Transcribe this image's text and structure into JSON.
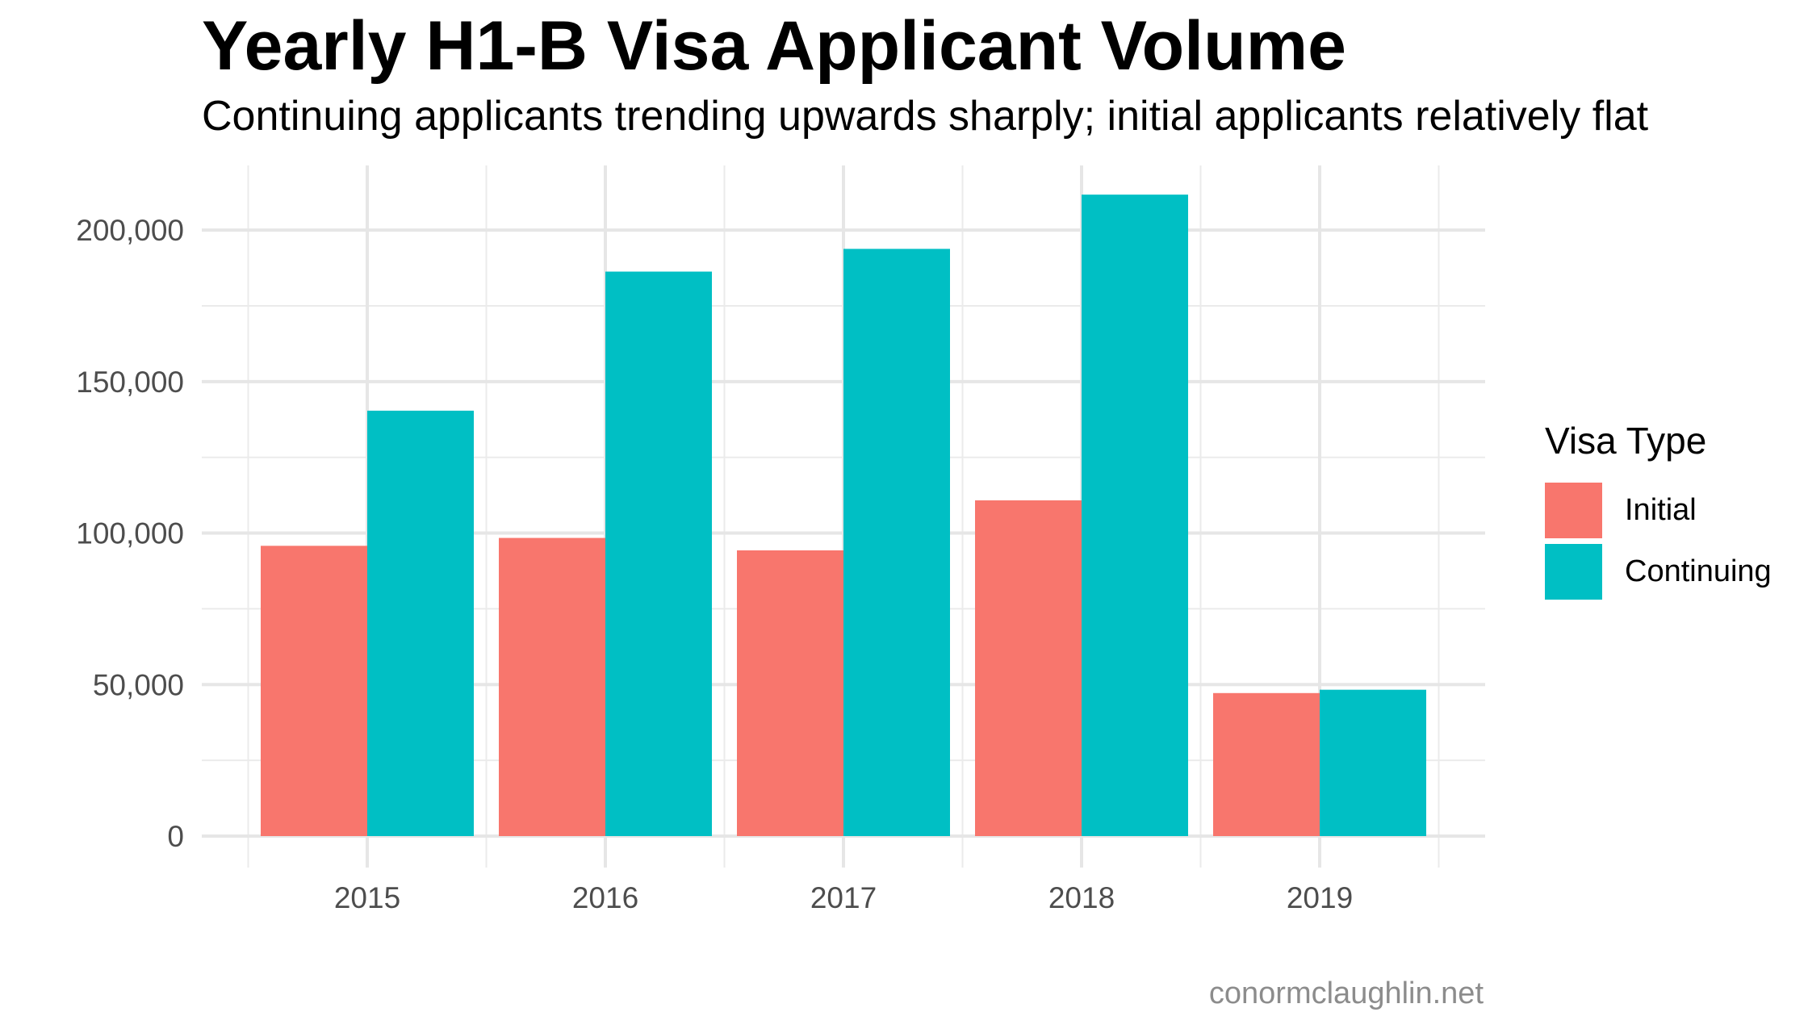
{
  "chart_data": {
    "type": "bar",
    "title": "Yearly H1-B Visa Applicant Volume",
    "subtitle": "Continuing applicants trending upwards sharply; initial applicants relatively flat",
    "xlabel": "",
    "ylabel": "",
    "categories": [
      "2015",
      "2016",
      "2017",
      "2018",
      "2019"
    ],
    "series": [
      {
        "name": "Initial",
        "color": "#F8766D",
        "values": [
          95800,
          98400,
          94300,
          110800,
          47200
        ]
      },
      {
        "name": "Continuing",
        "color": "#00BFC4",
        "values": [
          140400,
          186300,
          193800,
          211700,
          48300
        ]
      }
    ],
    "ylim": [
      0,
      220000
    ],
    "yticks": [
      0,
      50000,
      100000,
      150000,
      200000
    ],
    "ytick_labels": [
      "0",
      "50,000",
      "100,000",
      "150,000",
      "200,000"
    ],
    "grid": true,
    "legend": {
      "title": "Visa Type",
      "position": "right"
    },
    "caption": "conormclaughlin.net"
  }
}
